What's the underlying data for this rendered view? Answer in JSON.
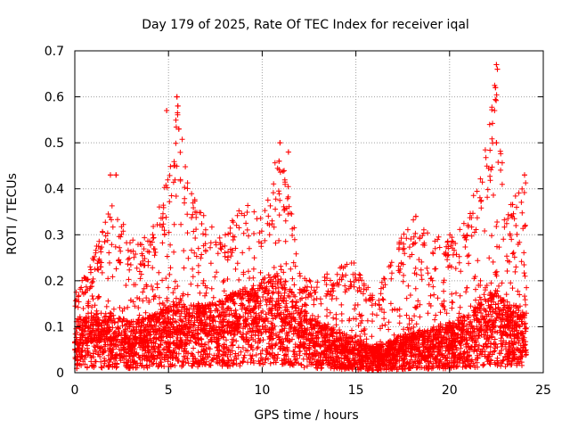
{
  "chart_data": {
    "type": "scatter",
    "title": "Day 179 of 2025, Rate Of TEC Index for receiver iqal",
    "xlabel": "GPS time / hours",
    "ylabel": "ROTI / TECUs",
    "xlim": [
      0,
      25
    ],
    "ylim": [
      0,
      0.7
    ],
    "xticks": [
      "0",
      "5",
      "10",
      "15",
      "20",
      "25"
    ],
    "yticks": [
      "0",
      "0.1",
      "0.2",
      "0.3",
      "0.4",
      "0.5",
      "0.6",
      "0.7"
    ],
    "grid": true,
    "marker": "+",
    "series_color": "#ff0000",
    "series": [
      {
        "name": "ROTI",
        "description_envelope_x": [
          0,
          1,
          2,
          3,
          4,
          5,
          5.5,
          6,
          7,
          8,
          9,
          10,
          10.9,
          11.5,
          12,
          13,
          14,
          15,
          16,
          17,
          18,
          19,
          20,
          21,
          22,
          22.5,
          23,
          24
        ],
        "description_envelope_y": [
          0.17,
          0.26,
          0.37,
          0.3,
          0.3,
          0.45,
          0.6,
          0.42,
          0.35,
          0.3,
          0.38,
          0.35,
          0.49,
          0.4,
          0.22,
          0.2,
          0.24,
          0.24,
          0.16,
          0.26,
          0.34,
          0.3,
          0.3,
          0.35,
          0.5,
          0.66,
          0.35,
          0.42
        ],
        "baseline_level": [
          0.06,
          0.07,
          0.07,
          0.06,
          0.07,
          0.08,
          0.09,
          0.08,
          0.08,
          0.09,
          0.1,
          0.11,
          0.12,
          0.1,
          0.08,
          0.06,
          0.05,
          0.04,
          0.03,
          0.04,
          0.05,
          0.05,
          0.06,
          0.07,
          0.09,
          0.1,
          0.08,
          0.08
        ],
        "highlights": [
          {
            "x": 4.9,
            "y": 0.57
          },
          {
            "x": 5.45,
            "y": 0.6
          },
          {
            "x": 5.5,
            "y": 0.58
          },
          {
            "x": 5.55,
            "y": 0.53
          },
          {
            "x": 10.95,
            "y": 0.5
          },
          {
            "x": 10.9,
            "y": 0.46
          },
          {
            "x": 11.4,
            "y": 0.48
          },
          {
            "x": 2.2,
            "y": 0.43
          },
          {
            "x": 1.9,
            "y": 0.43
          },
          {
            "x": 18.2,
            "y": 0.34
          },
          {
            "x": 22.5,
            "y": 0.67
          },
          {
            "x": 22.55,
            "y": 0.66
          },
          {
            "x": 22.45,
            "y": 0.62
          },
          {
            "x": 22.5,
            "y": 0.5
          },
          {
            "x": 24.0,
            "y": 0.43
          }
        ]
      }
    ]
  }
}
